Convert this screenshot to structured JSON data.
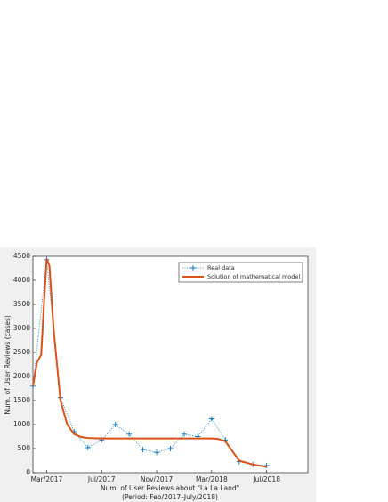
{
  "chart_data": {
    "type": "line",
    "ylabel": "Num. of User Reviews (cases)",
    "xlabel": [
      "Num. of User Reviews about \"La La Land\"",
      "(Period: Feb/2017–July/2018)"
    ],
    "xlim": [
      0,
      20
    ],
    "ylim": [
      0,
      4500
    ],
    "xticks": [
      {
        "value": 1,
        "label": "Mar/2017"
      },
      {
        "value": 5,
        "label": "Jul/2017"
      },
      {
        "value": 9,
        "label": "Nov/2017"
      },
      {
        "value": 13,
        "label": "Mar/2018"
      },
      {
        "value": 17,
        "label": "Jul/2018"
      }
    ],
    "yticks": [
      0,
      500,
      1000,
      1500,
      2000,
      2500,
      3000,
      3500,
      4000,
      4500
    ],
    "legend": "northeast",
    "series": [
      {
        "name": "Real data",
        "color": "#0072bd",
        "style": "dotted-plus",
        "x": [
          0,
          1,
          2,
          3,
          4,
          5,
          6,
          7,
          8,
          9,
          10,
          11,
          12,
          13,
          14,
          15,
          16,
          17
        ],
        "values": [
          1800,
          4430,
          1560,
          850,
          520,
          680,
          1000,
          800,
          480,
          420,
          500,
          800,
          750,
          1120,
          680,
          230,
          170,
          150
        ]
      },
      {
        "name": "Solution of mathematical model",
        "color": "#d95319",
        "style": "solid",
        "x": [
          0,
          0.3,
          0.6,
          0.8,
          1,
          1.2,
          1.5,
          2,
          2.5,
          3,
          3.5,
          4,
          5,
          6,
          7,
          8,
          9,
          10,
          11,
          12,
          13,
          13.5,
          14,
          14.5,
          15,
          16,
          17
        ],
        "values": [
          1800,
          2300,
          2450,
          3500,
          4450,
          4300,
          3000,
          1500,
          1000,
          800,
          740,
          720,
          710,
          710,
          710,
          710,
          710,
          710,
          710,
          710,
          710,
          700,
          650,
          450,
          250,
          170,
          120
        ]
      }
    ]
  }
}
